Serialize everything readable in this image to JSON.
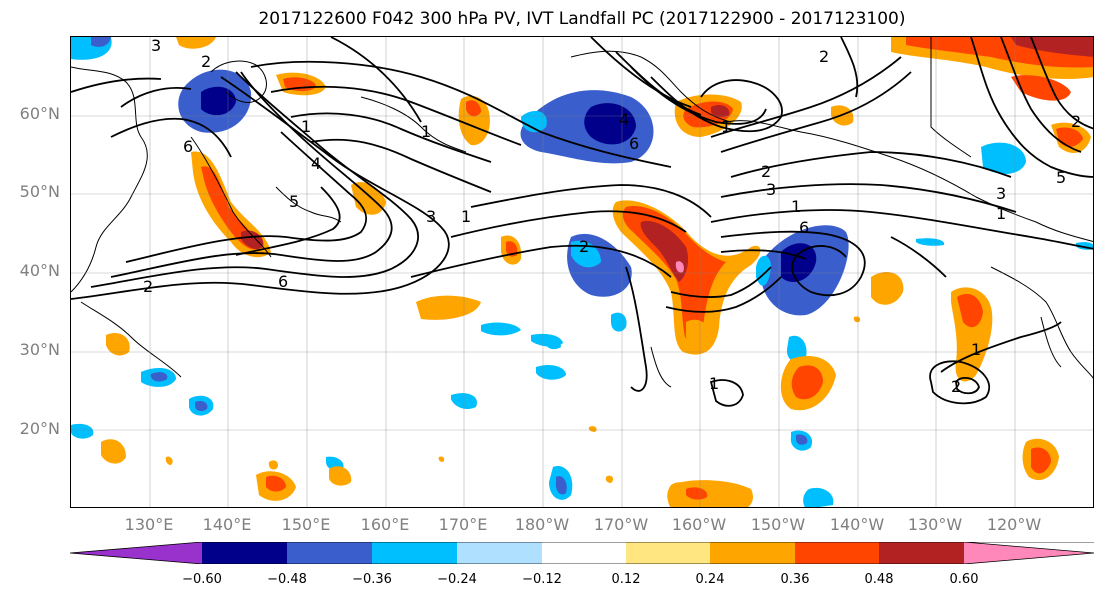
{
  "title": "2017122600 F042 300 hPa PV, IVT Landfall PC (2017122900 - 2017123100)",
  "lat_labels": [
    "60°N",
    "50°N",
    "40°N",
    "30°N",
    "20°N"
  ],
  "lon_labels": [
    "130°E",
    "140°E",
    "150°E",
    "160°E",
    "170°E",
    "180°W",
    "170°W",
    "160°W",
    "150°W",
    "140°W",
    "130°W",
    "120°W"
  ],
  "colorbar": {
    "ticks": [
      "−0.60",
      "−0.48",
      "−0.36",
      "−0.24",
      "−0.12",
      "0.12",
      "0.24",
      "0.36",
      "0.48",
      "0.60"
    ],
    "colors": [
      "#9932cc",
      "#00008b",
      "#3a5fcd",
      "#00bfff",
      "#b0e0ff",
      "#ffffff",
      "#ffe680",
      "#ffa500",
      "#ff4500",
      "#b22222",
      "#ff88bb"
    ]
  },
  "contour_labels": [
    "3",
    "2",
    "1",
    "6",
    "5",
    "4",
    "3",
    "6",
    "2",
    "1",
    "4",
    "6",
    "2",
    "1",
    "2",
    "3",
    "1",
    "6",
    "2",
    "5",
    "3",
    "1",
    "2",
    "1",
    "1",
    "1",
    "2"
  ]
}
